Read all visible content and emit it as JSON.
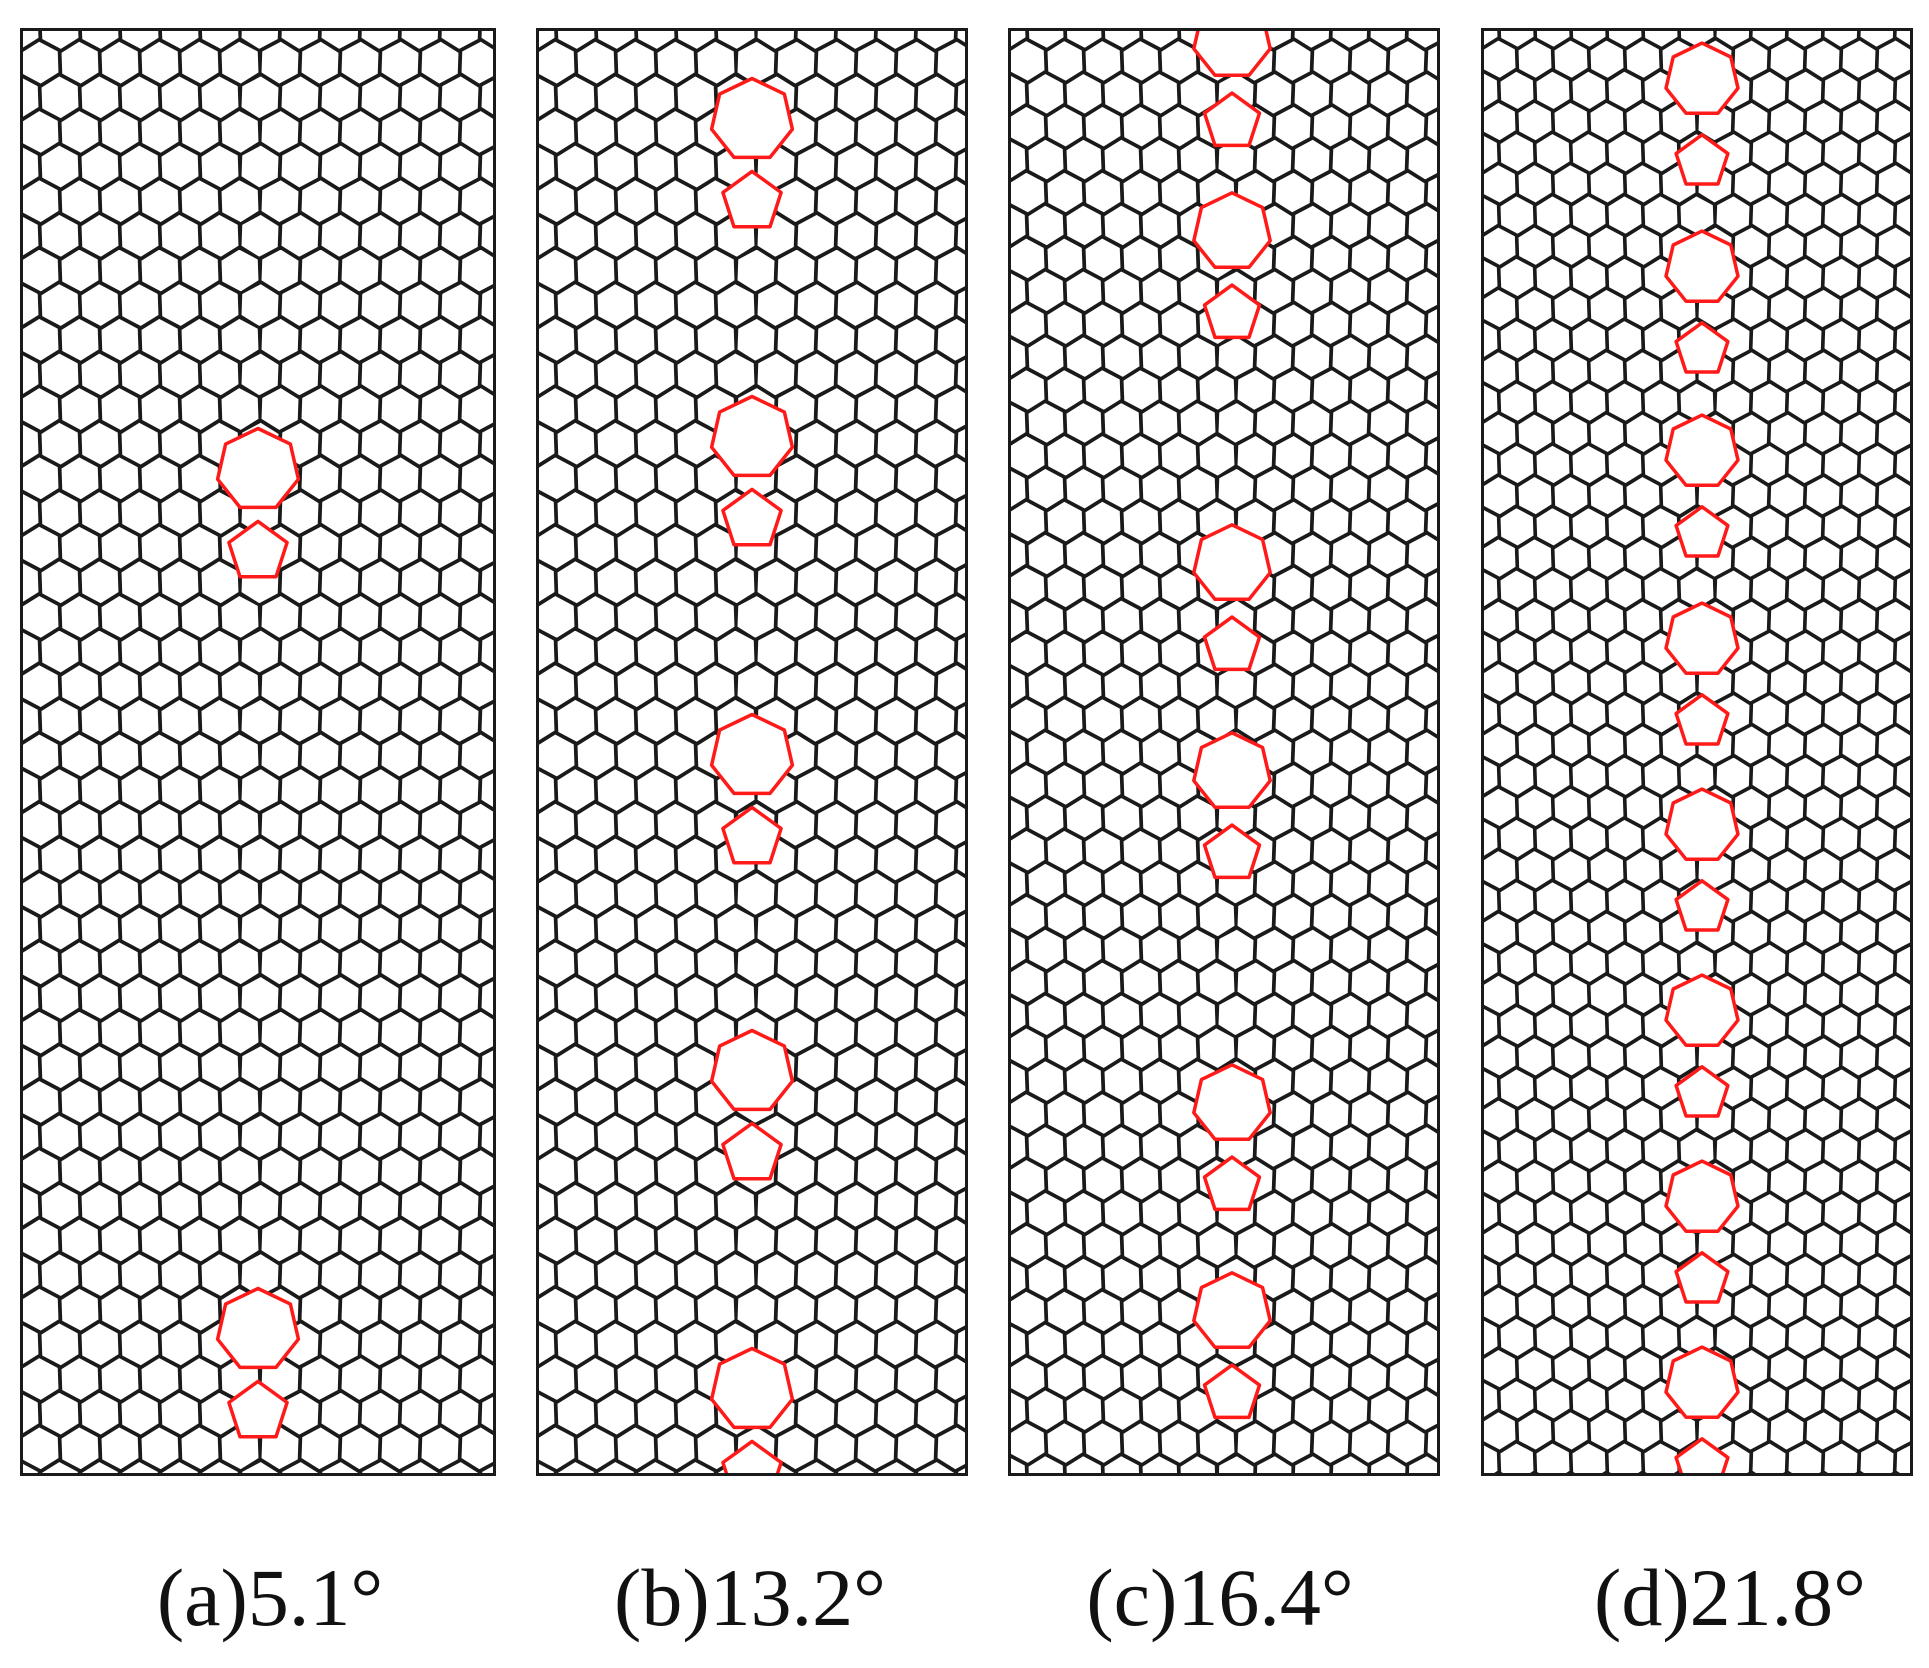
{
  "figure": {
    "panels": [
      {
        "label": "(a)",
        "angle": "5.1°",
        "defect_count": 2
      },
      {
        "label": "(b)",
        "angle": "13.2°",
        "defect_count": 5
      },
      {
        "label": "(c)",
        "angle": "16.4°",
        "defect_count": 6
      },
      {
        "label": "(d)",
        "angle": "21.8°",
        "defect_count": 8
      }
    ],
    "colors": {
      "lattice": "#1a1a1a",
      "defect": "#ff1a1a",
      "background": "#ffffff"
    }
  }
}
